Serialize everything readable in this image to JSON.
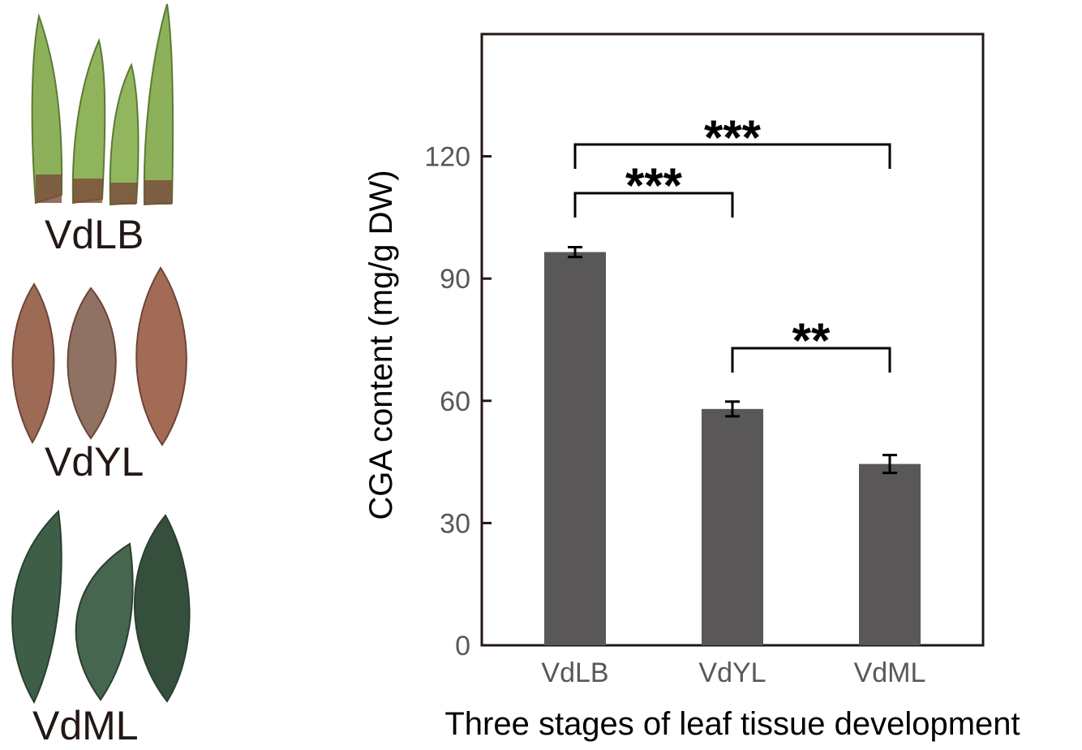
{
  "samples": [
    {
      "label": "VdLB",
      "color": "#8db15a"
    },
    {
      "label": "VdYL",
      "color": "#9c6a55"
    },
    {
      "label": "VdML",
      "color": "#3f5e48"
    }
  ],
  "chart_data": {
    "type": "bar",
    "categories": [
      "VdLB",
      "VdYL",
      "VdML"
    ],
    "values": [
      96.5,
      58,
      44.5
    ],
    "errors": [
      1.2,
      1.8,
      2.2
    ],
    "xlabel": "Three stages of leaf tissue development",
    "ylabel": "CGA content (mg/g DW)",
    "ylim": [
      0,
      150
    ],
    "yticks": [
      0,
      30,
      60,
      90,
      120
    ],
    "bar_color": "#595757",
    "significance": [
      {
        "from": 0,
        "to": 2,
        "label": "***"
      },
      {
        "from": 0,
        "to": 1,
        "label": "***"
      },
      {
        "from": 1,
        "to": 2,
        "label": "**"
      }
    ],
    "grid": false
  }
}
